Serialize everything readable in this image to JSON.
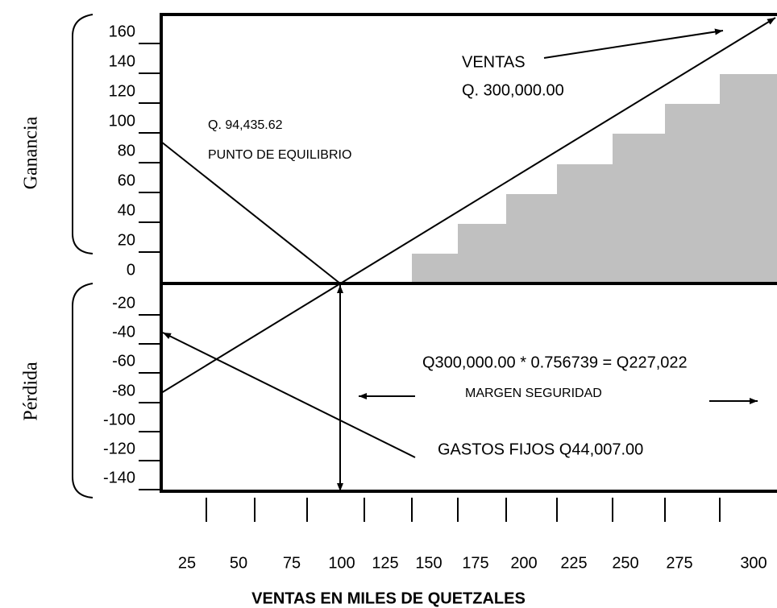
{
  "y_axis": {
    "side_labels": [
      "Ganancia",
      "Pérdida"
    ],
    "tick_labels": [
      "160",
      "140",
      "120",
      "100",
      "80",
      "60",
      "40",
      "20",
      "0",
      "-20",
      "-40",
      "-60",
      "-80",
      "-100",
      "-120",
      "-140"
    ]
  },
  "x_axis": {
    "title": "VENTAS EN MILES DE QUETZALES",
    "tick_labels": [
      "25",
      "50",
      "75",
      "100",
      "125",
      "150",
      "175",
      "200",
      "225",
      "250",
      "275",
      "300"
    ]
  },
  "annotations": {
    "sales": "VENTAS",
    "sales_amount": "Q. 300,000.00",
    "break_even_amount": "Q. 94,435.62",
    "break_even": "PUNTO DE EQUILIBRIO",
    "margin_formula": "Q300,000.00 * 0.756739 = Q227,022",
    "margin": "MARGEN SEGURIDAD",
    "fixed_costs": "GASTOS FIJOS  Q44,007.00"
  }
}
